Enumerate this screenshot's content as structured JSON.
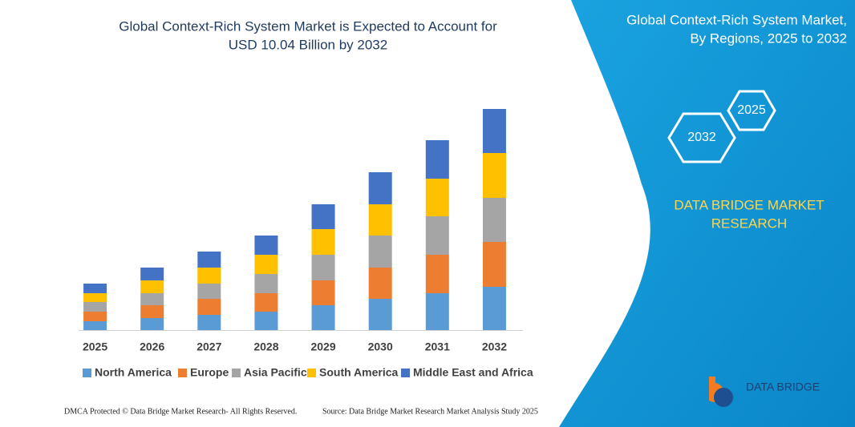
{
  "chart_data": {
    "type": "stacked_bar",
    "title": [
      "Global Context-Rich System Market is Expected to Account for",
      "USD 10.04 Billion by 2032"
    ],
    "categories": [
      "2025",
      "2026",
      "2027",
      "2028",
      "2029",
      "2030",
      "2031",
      "2032"
    ],
    "series": [
      {
        "name": "North America",
        "color": "#5b9bd5",
        "values": [
          11,
          15,
          19,
          23,
          31,
          39,
          46,
          54
        ]
      },
      {
        "name": "Europe",
        "color": "#ed7d31",
        "values": [
          12,
          16,
          20,
          23,
          31,
          39,
          48,
          56
        ]
      },
      {
        "name": "Asia Pacific",
        "color": "#a5a5a5",
        "values": [
          12,
          15,
          19,
          24,
          32,
          40,
          48,
          55
        ]
      },
      {
        "name": "South America",
        "color": "#ffc000",
        "values": [
          11,
          16,
          20,
          24,
          32,
          39,
          47,
          56
        ]
      },
      {
        "name": "Middle East and Africa",
        "color": "#4472c4",
        "values": [
          12,
          16,
          20,
          24,
          31,
          40,
          48,
          55
        ]
      }
    ],
    "ylim": [
      0,
      280
    ]
  },
  "panel": {
    "title": [
      "Global Context-Rich System Market,",
      "By Regions, 2025 to 2032"
    ],
    "hex_labels": [
      "2025",
      "2032"
    ],
    "brand": [
      "DATA BRIDGE MARKET",
      "RESEARCH"
    ],
    "logo": "DATA BRIDGE"
  },
  "footer": {
    "left": "DMCA Protected © Data Bridge Market Research- All Rights Reserved.",
    "right": "Source: Data Bridge Market Research Market Analysis Study 2025"
  }
}
